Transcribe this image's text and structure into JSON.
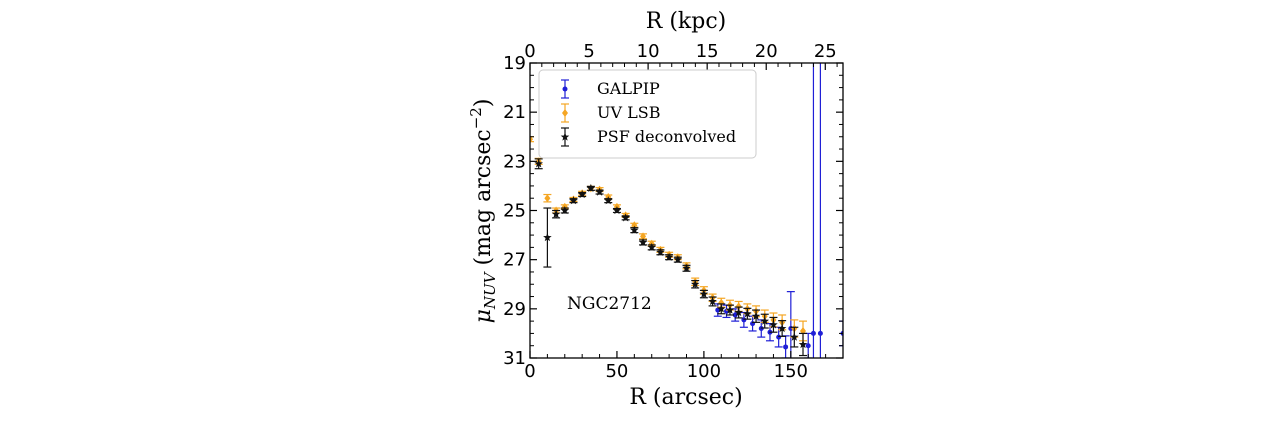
{
  "chart_data": {
    "type": "scatter",
    "xlabel": "R (arcsec)",
    "x2label": "R (kpc)",
    "ylabel_main": "μ",
    "ylabel_sub": "NUV",
    "ylabel_rest": " (mag arcsec",
    "ylabel_sup": "−2",
    "ylabel_end": ")",
    "xlim": [
      0,
      180
    ],
    "ylim": [
      31,
      19
    ],
    "x2lim": [
      0,
      26.5
    ],
    "xticks": [
      "0",
      "50",
      "100",
      "150"
    ],
    "xtick_values": [
      0,
      50,
      100,
      150
    ],
    "x2ticks": [
      "0",
      "5",
      "10",
      "15",
      "20",
      "25"
    ],
    "x2tick_values": [
      0,
      5,
      10,
      15,
      20,
      25
    ],
    "yticks": [
      "19",
      "21",
      "23",
      "25",
      "27",
      "29",
      "31"
    ],
    "ytick_values": [
      19,
      21,
      23,
      25,
      27,
      29,
      31
    ],
    "annotation": "NGC2712",
    "legend_position": "top-left",
    "colors": {
      "galpip": "#1f1fd6",
      "uvlsb": "#f5a623",
      "psf": "#111111"
    },
    "series": [
      {
        "name": "GALPIP",
        "marker": "dot",
        "points": [
          [
            108,
            29.05,
            0.25
          ],
          [
            113,
            29.1,
            0.25
          ],
          [
            118,
            29.25,
            0.25
          ],
          [
            123,
            29.45,
            0.3
          ],
          [
            128,
            29.6,
            0.3
          ],
          [
            133,
            29.8,
            0.35
          ],
          [
            138,
            29.95,
            0.35
          ],
          [
            143,
            30.15,
            0.4
          ],
          [
            147,
            30.55,
            0.45
          ],
          [
            150,
            29.8,
            1.5
          ],
          [
            160,
            30.5,
            0.5
          ],
          [
            163,
            30.0,
            12
          ],
          [
            167,
            30.0,
            12
          ],
          [
            180,
            30.0,
            0.5
          ]
        ]
      },
      {
        "name": "UV LSB",
        "marker": "diamond",
        "points": [
          [
            0,
            22.1,
            0.1
          ],
          [
            5,
            23.0,
            0.12
          ],
          [
            10,
            24.5,
            0.15
          ],
          [
            15,
            25.0,
            0.1
          ],
          [
            20,
            24.85,
            0.08
          ],
          [
            25,
            24.55,
            0.08
          ],
          [
            30,
            24.3,
            0.08
          ],
          [
            35,
            24.1,
            0.08
          ],
          [
            40,
            24.15,
            0.08
          ],
          [
            45,
            24.45,
            0.08
          ],
          [
            50,
            24.85,
            0.08
          ],
          [
            55,
            25.2,
            0.08
          ],
          [
            60,
            25.6,
            0.08
          ],
          [
            65,
            26.05,
            0.1
          ],
          [
            70,
            26.35,
            0.1
          ],
          [
            75,
            26.6,
            0.1
          ],
          [
            80,
            26.8,
            0.1
          ],
          [
            85,
            26.9,
            0.1
          ],
          [
            90,
            27.25,
            0.12
          ],
          [
            95,
            27.9,
            0.15
          ],
          [
            100,
            28.25,
            0.15
          ],
          [
            105,
            28.55,
            0.15
          ],
          [
            110,
            28.75,
            0.18
          ],
          [
            115,
            28.85,
            0.2
          ],
          [
            120,
            28.9,
            0.2
          ],
          [
            125,
            29.0,
            0.2
          ],
          [
            130,
            29.1,
            0.22
          ],
          [
            135,
            29.3,
            0.25
          ],
          [
            140,
            29.45,
            0.28
          ],
          [
            145,
            29.55,
            0.3
          ],
          [
            152,
            29.8,
            0.35
          ],
          [
            157,
            29.9,
            0.4
          ]
        ]
      },
      {
        "name": "PSF deconvolved",
        "marker": "star",
        "points": [
          [
            5,
            23.1,
            0.2
          ],
          [
            10,
            26.1,
            1.2
          ],
          [
            15,
            25.15,
            0.15
          ],
          [
            20,
            25.0,
            0.1
          ],
          [
            25,
            24.6,
            0.08
          ],
          [
            30,
            24.35,
            0.08
          ],
          [
            35,
            24.1,
            0.08
          ],
          [
            40,
            24.25,
            0.08
          ],
          [
            45,
            24.6,
            0.08
          ],
          [
            50,
            25.0,
            0.08
          ],
          [
            55,
            25.3,
            0.08
          ],
          [
            60,
            25.8,
            0.1
          ],
          [
            65,
            26.3,
            0.1
          ],
          [
            70,
            26.5,
            0.1
          ],
          [
            75,
            26.7,
            0.1
          ],
          [
            80,
            26.9,
            0.1
          ],
          [
            85,
            27.0,
            0.1
          ],
          [
            90,
            27.35,
            0.12
          ],
          [
            95,
            28.0,
            0.15
          ],
          [
            100,
            28.4,
            0.15
          ],
          [
            105,
            28.7,
            0.18
          ],
          [
            110,
            29.0,
            0.2
          ],
          [
            115,
            29.05,
            0.2
          ],
          [
            120,
            29.15,
            0.22
          ],
          [
            125,
            29.2,
            0.22
          ],
          [
            130,
            29.3,
            0.25
          ],
          [
            135,
            29.5,
            0.28
          ],
          [
            140,
            29.65,
            0.3
          ],
          [
            145,
            29.8,
            0.32
          ],
          [
            152,
            30.15,
            0.4
          ],
          [
            157,
            30.45,
            0.45
          ]
        ]
      }
    ]
  }
}
